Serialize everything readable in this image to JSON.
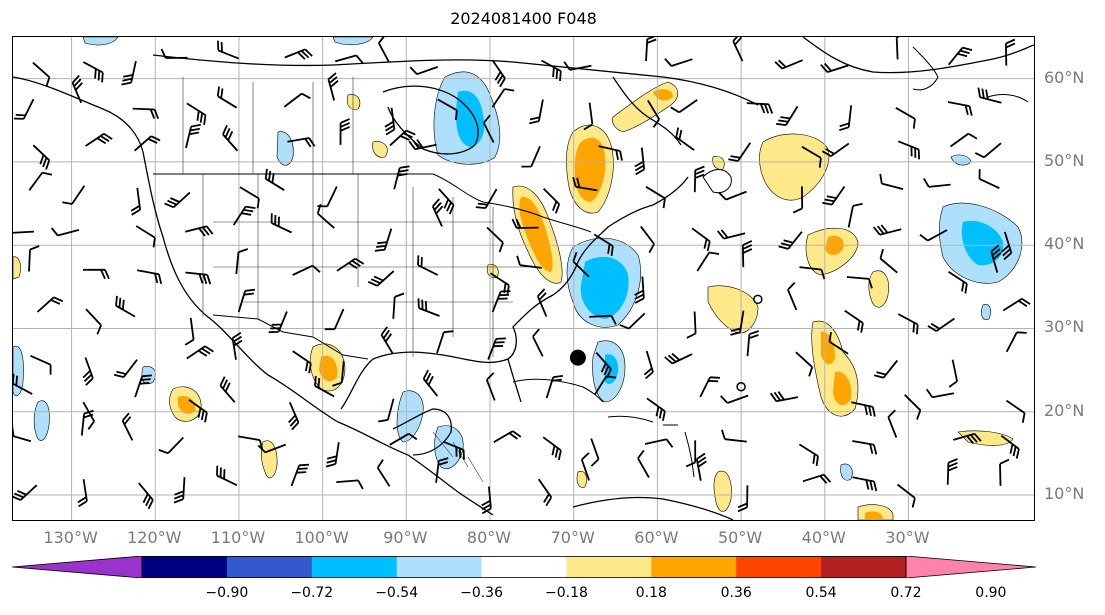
{
  "title": "2024081400 F048",
  "map": {
    "projection": "lat-lon",
    "lon_range": [
      -137,
      -15
    ],
    "lat_range": [
      7,
      65
    ],
    "lat_labels": [
      "10°N",
      "20°N",
      "30°N",
      "40°N",
      "50°N",
      "60°N"
    ],
    "lon_labels": [
      "130°W",
      "120°W",
      "110°W",
      "100°W",
      "90°W",
      "80°W",
      "70°W",
      "60°W",
      "50°W",
      "40°W",
      "30°W"
    ],
    "markers": [
      {
        "type": "filled-circle",
        "lon": -69.5,
        "lat": 26.5
      },
      {
        "type": "open-circle",
        "lon": -48,
        "lat": 33.5
      },
      {
        "type": "open-circle",
        "lon": -50,
        "lat": 23
      }
    ],
    "shading_colors": {
      "light_blue": "#aee0fb",
      "deep_sky_blue": "#00bfff",
      "light_yellow": "#fde98a",
      "orange": "#ffa500",
      "red_orange": "#ff4500"
    },
    "overlay": [
      "coastlines",
      "political-borders",
      "wind-barbs",
      "grid"
    ]
  },
  "colorbar": {
    "extend": "both",
    "colors": [
      "#9933cc",
      "#000080",
      "#3358cc",
      "#00bfff",
      "#aee0fb",
      "#ffffff",
      "#fde98a",
      "#ffa500",
      "#ff4500",
      "#b22222",
      "#ff82ab"
    ],
    "tick_labels": [
      "−0.90",
      "−0.72",
      "−0.54",
      "−0.36",
      "−0.18",
      "0.18",
      "0.36",
      "0.54",
      "0.72",
      "0.90"
    ]
  }
}
